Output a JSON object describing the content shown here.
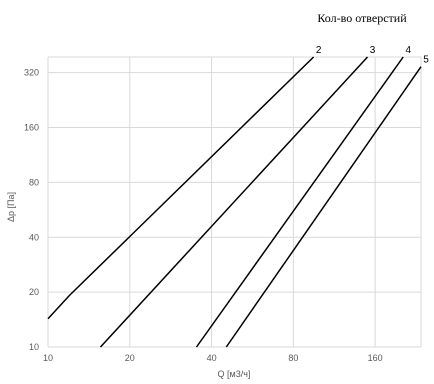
{
  "chart_data": {
    "type": "line",
    "title": "",
    "legend_title": "Кол-во отверстий",
    "xlabel": "Q [м3/ч]",
    "ylabel": "Δp [Па]",
    "x_scale": "log",
    "y_scale": "log",
    "xlim": [
      10,
      236
    ],
    "ylim": [
      10,
      390
    ],
    "x_ticks": [
      10,
      20,
      40,
      80,
      160
    ],
    "y_ticks": [
      10,
      20,
      40,
      80,
      160,
      320
    ],
    "x_tick_labels": [
      "10",
      "20",
      "40",
      "80",
      "160"
    ],
    "y_tick_labels": [
      "10",
      "20",
      "40",
      "80",
      "160",
      "320"
    ],
    "grid": true,
    "series": [
      {
        "name": "2",
        "x": [
          10,
          12,
          95
        ],
        "y": [
          14.3,
          19.2,
          390
        ]
      },
      {
        "name": "3",
        "x": [
          15.6,
          150
        ],
        "y": [
          10,
          390
        ]
      },
      {
        "name": "4",
        "x": [
          35.2,
          203
        ],
        "y": [
          10,
          390
        ]
      },
      {
        "name": "5",
        "x": [
          45.3,
          236
        ],
        "y": [
          10,
          345
        ]
      }
    ]
  }
}
